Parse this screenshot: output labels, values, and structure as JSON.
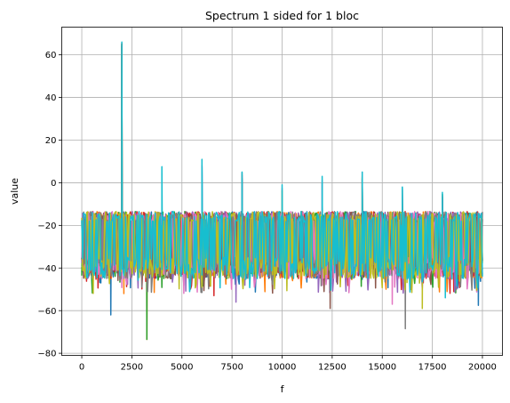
{
  "chart_data": {
    "type": "line",
    "title": "Spectrum 1 sided for 1 bloc",
    "xlabel": "f",
    "ylabel": "value",
    "xlim": [
      -1000,
      21000
    ],
    "ylim": [
      -81,
      73
    ],
    "x_ticks": [
      0,
      2500,
      5000,
      7500,
      10000,
      12500,
      15000,
      17500,
      20000
    ],
    "x_tick_labels": [
      "0",
      "2500",
      "5000",
      "7500",
      "10000",
      "12500",
      "15000",
      "17500",
      "20000"
    ],
    "y_ticks": [
      -80,
      -60,
      -40,
      -20,
      0,
      20,
      40,
      60
    ],
    "y_tick_labels": [
      "−80",
      "−60",
      "−40",
      "−20",
      "0",
      "20",
      "40",
      "60"
    ],
    "grid": true,
    "legend": "none",
    "colors": [
      "#1f77b4",
      "#ff7f0e",
      "#2ca02c",
      "#d62728",
      "#9467bd",
      "#8c564b",
      "#e377c2",
      "#7f7f7f",
      "#bcbd22",
      "#17becf"
    ],
    "noise_band": {
      "upper_mean": -16,
      "lower_mean": -40,
      "center": -26
    },
    "peaks": [
      {
        "x": 2000,
        "y": 66
      },
      {
        "x": 4000,
        "y": 7.5
      },
      {
        "x": 6000,
        "y": 11
      },
      {
        "x": 8000,
        "y": 5
      },
      {
        "x": 10000,
        "y": -1
      },
      {
        "x": 12000,
        "y": 3
      },
      {
        "x": 14000,
        "y": 5
      },
      {
        "x": 16000,
        "y": -2
      },
      {
        "x": 18000,
        "y": -4.5
      }
    ],
    "dips": [
      {
        "x": 1450,
        "y": -62
      },
      {
        "x": 2100,
        "y": -52
      },
      {
        "x": 3250,
        "y": -73.5
      },
      {
        "x": 6600,
        "y": -53
      },
      {
        "x": 7700,
        "y": -56
      },
      {
        "x": 12400,
        "y": -59
      },
      {
        "x": 15500,
        "y": -57
      },
      {
        "x": 16150,
        "y": -68.5
      },
      {
        "x": 17000,
        "y": -59
      },
      {
        "x": 18150,
        "y": -54
      },
      {
        "x": 19800,
        "y": -57.5
      }
    ]
  }
}
